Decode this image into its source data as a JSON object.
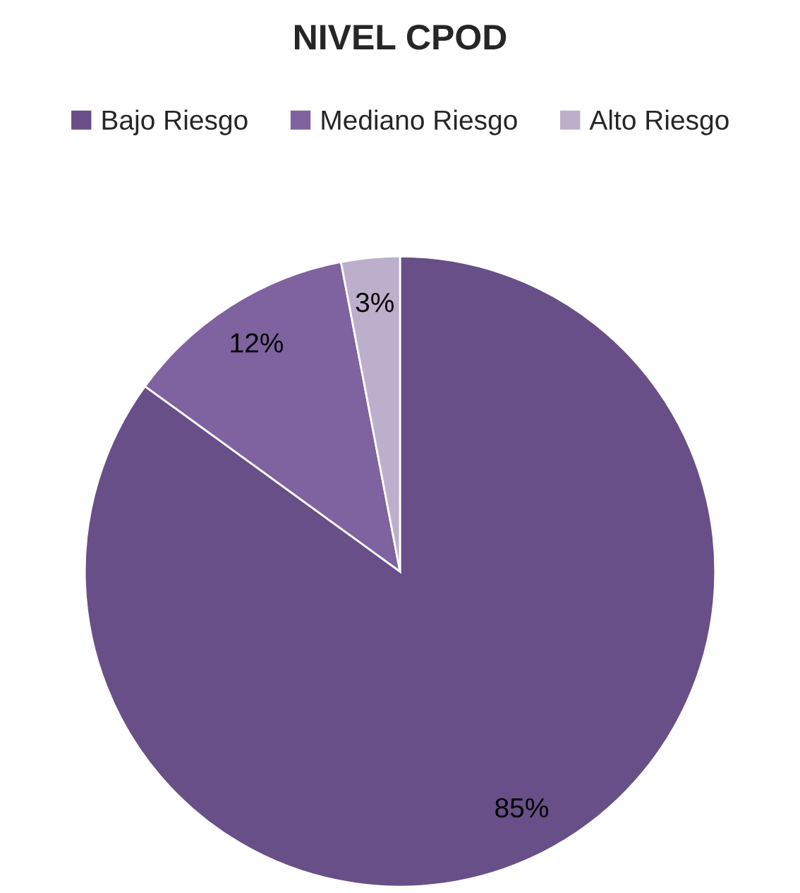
{
  "chart_data": {
    "type": "pie",
    "title": "NIVEL CPOD",
    "categories": [
      "Bajo Riesgo",
      "Mediano Riesgo",
      "Alto Riesgo"
    ],
    "values": [
      85,
      12,
      3
    ],
    "colors": [
      "#684f87",
      "#7f62a0",
      "#bcafcc"
    ],
    "value_labels": [
      "85%",
      "12%",
      "3%"
    ],
    "legend": "top"
  }
}
